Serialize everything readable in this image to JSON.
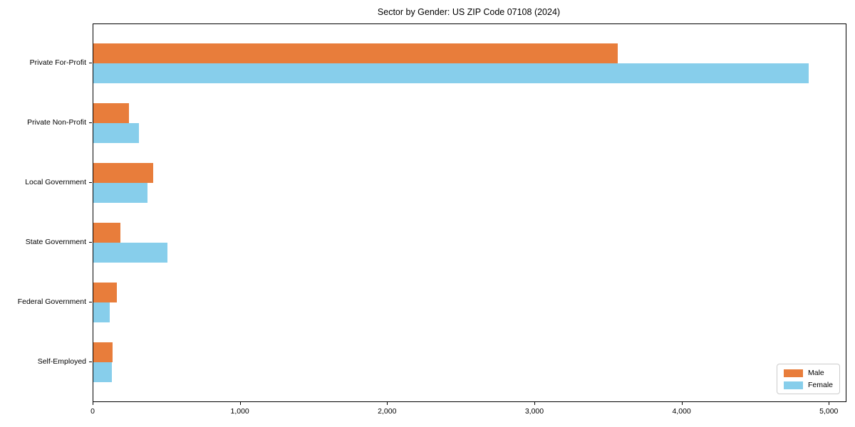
{
  "title": "Sector by Gender: US ZIP Code 07108 (2024)",
  "chart_data": {
    "type": "bar",
    "orientation": "horizontal",
    "title": "Sector by Gender: US ZIP Code 07108 (2024)",
    "categories": [
      "Private For-Profit",
      "Private Non-Profit",
      "Local Government",
      "State Government",
      "Federal Government",
      "Self-Employed"
    ],
    "series": [
      {
        "name": "Male",
        "color": "#e87d3b",
        "values": [
          3560,
          240,
          405,
          185,
          160,
          130
        ]
      },
      {
        "name": "Female",
        "color": "#87ceeb",
        "values": [
          4860,
          310,
          370,
          505,
          110,
          125
        ]
      }
    ],
    "xlabel": "",
    "ylabel": "",
    "xlim": [
      0,
      5110
    ],
    "xticks": [
      0,
      1000,
      2000,
      3000,
      4000,
      5000
    ],
    "xtick_labels": [
      "0",
      "1,000",
      "2,000",
      "3,000",
      "4,000",
      "5,000"
    ],
    "legend": {
      "position": "lower right",
      "entries": [
        "Male",
        "Female"
      ]
    },
    "grid": false,
    "axis_color": "#000000",
    "background": "#ffffff"
  }
}
